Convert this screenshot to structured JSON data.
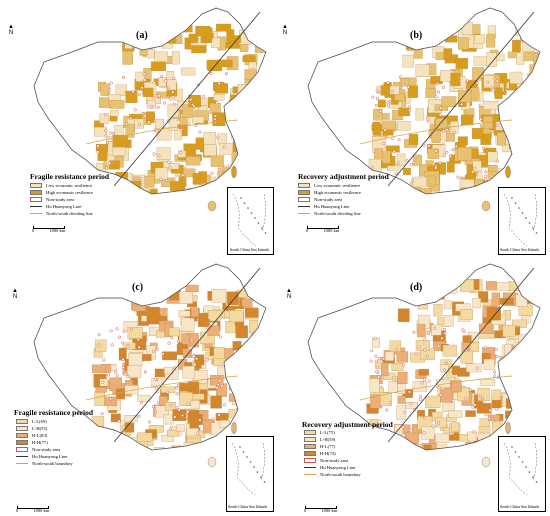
{
  "panels": [
    {
      "label": "(a)",
      "title": "Fragile resistance period",
      "legend": [
        {
          "type": "box",
          "color": "#f6e3bd",
          "text": "Low economic resilience"
        },
        {
          "type": "box",
          "color": "#d99d1e",
          "text": "High economic resilience"
        },
        {
          "type": "box",
          "color": "#ffffff",
          "border": "#d05050",
          "text": "Non-study area"
        },
        {
          "type": "line",
          "color": "#333333",
          "text": "Hu Huanyong Line"
        },
        {
          "type": "line",
          "color": "#d9a140",
          "text": "North-south dividing line"
        }
      ],
      "scale_text": "1000 km",
      "scale_zero": "0",
      "inset_label": "South China Sea Islands",
      "palette": [
        "#f6e3bd",
        "#e8c170",
        "#d99d1e"
      ]
    },
    {
      "label": "(b)",
      "title": "Recovery adjustment period",
      "legend": [
        {
          "type": "box",
          "color": "#f6e3bd",
          "text": "Low economic resilience"
        },
        {
          "type": "box",
          "color": "#d99d1e",
          "text": "High economic resilience"
        },
        {
          "type": "box",
          "color": "#ffffff",
          "border": "#d05050",
          "text": "Non-study area"
        },
        {
          "type": "line",
          "color": "#333333",
          "text": "Hu Huanyong Line"
        },
        {
          "type": "line",
          "color": "#d9a140",
          "text": "North-south dividing line"
        }
      ],
      "scale_text": "1000 km",
      "scale_zero": "0",
      "inset_label": "South China Sea Islands",
      "palette": [
        "#f6e3bd",
        "#e8c170",
        "#d99d1e"
      ]
    },
    {
      "label": "(c)",
      "title": "Fragile resistance period",
      "legend": [
        {
          "type": "box",
          "color": "#f4d9a0",
          "text": "L-L(69)"
        },
        {
          "type": "box",
          "color": "#f9e6c8",
          "text": "L-H(55)"
        },
        {
          "type": "box",
          "color": "#ecad76",
          "text": "H-L(83)"
        },
        {
          "type": "box",
          "color": "#d4862f",
          "text": "H-H(77)"
        },
        {
          "type": "box",
          "color": "#ffffff",
          "border": "#d05050",
          "text": "Non-study area"
        },
        {
          "type": "line",
          "color": "#333333",
          "text": "Hu Huanyong Line"
        },
        {
          "type": "line",
          "color": "#d9a140",
          "text": "North-south boundary"
        }
      ],
      "scale_text": "1000 km",
      "scale_zero": "0",
      "inset_label": "South China Sea Islands",
      "palette": [
        "#f4d9a0",
        "#f9e6c8",
        "#ecad76",
        "#d4862f"
      ]
    },
    {
      "label": "(d)",
      "title": "Recovery adjustment period",
      "legend": [
        {
          "type": "box",
          "color": "#f4d9a0",
          "text": "L-L(75)"
        },
        {
          "type": "box",
          "color": "#f9e6c8",
          "text": "L-H(59)"
        },
        {
          "type": "box",
          "color": "#ecad76",
          "text": "H-L(77)"
        },
        {
          "type": "box",
          "color": "#d4862f",
          "text": "H-H(74)"
        },
        {
          "type": "box",
          "color": "#ffffff",
          "border": "#d05050",
          "text": "Non-study area"
        },
        {
          "type": "line",
          "color": "#333333",
          "text": "Hu Huanyong Line"
        },
        {
          "type": "line",
          "color": "#d9a140",
          "text": "North-south boundary"
        }
      ],
      "scale_text": "1000 km",
      "scale_zero": "0",
      "inset_label": "South China Sea Islands",
      "palette": [
        "#f4d9a0",
        "#f9e6c8",
        "#ecad76",
        "#d4862f"
      ]
    }
  ],
  "north_label": "N"
}
